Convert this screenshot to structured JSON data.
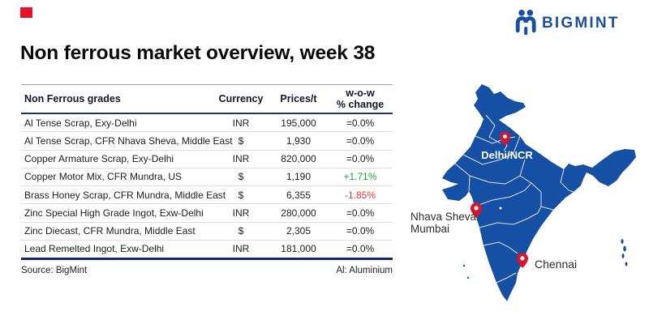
{
  "brand": {
    "logo_text": "BIGMINT",
    "logo_color": "#1a4fa0",
    "accent_square_color": "#e8112d"
  },
  "title": "Non ferrous market overview, week 38",
  "table": {
    "headers": {
      "grades": "Non Ferrous grades",
      "currency": "Currency",
      "prices": "Prices/t",
      "wow_line1": "w-o-w",
      "wow_line2": "% change"
    },
    "rows": [
      {
        "grade": "Al Tense Scrap, Exy-Delhi",
        "currency": "INR",
        "price": "195,000",
        "change": "=0.0%",
        "trend": "flat"
      },
      {
        "grade": "Al Tense Scrap, CFR Nhava Sheva, Middle East",
        "currency": "$",
        "price": "1,930",
        "change": "=0.0%",
        "trend": "flat"
      },
      {
        "grade": "Copper Armature Scrap, Exy-Delhi",
        "currency": "INR",
        "price": "820,000",
        "change": "=0.0%",
        "trend": "flat"
      },
      {
        "grade": "Copper Motor Mix, CFR Mundra, US",
        "currency": "$",
        "price": "1,190",
        "change": "+1.71%",
        "trend": "up"
      },
      {
        "grade": "Brass Honey Scrap, CFR Mundra, Middle East",
        "currency": "$",
        "price": "6,355",
        "change": "-1.85%",
        "trend": "down"
      },
      {
        "grade": "Zinc Special High Grade Ingot, Exw-Delhi",
        "currency": "INR",
        "price": "280,000",
        "change": "=0.0%",
        "trend": "flat"
      },
      {
        "grade": "Zinc Diecast, CFR Mundra, Middle East",
        "currency": "$",
        "price": "2,305",
        "change": "=0.0%",
        "trend": "flat"
      },
      {
        "grade": "Lead Remelted Ingot, Exw-Delhi",
        "currency": "INR",
        "price": "181,000",
        "change": "=0.0%",
        "trend": "flat"
      }
    ],
    "source": "Source: BigMint",
    "footnote": "Al: Aluminium"
  },
  "map": {
    "region_name": "India",
    "fill_color": "#1550a5",
    "border_color": "#ffffff",
    "pin_color": "#d9132e",
    "pins": {
      "delhi": {
        "label": "Delhi/NCR"
      },
      "nhava": {
        "line1": "Nhava Sheva,",
        "line2": "Mumbai"
      },
      "chennai": {
        "label": "Chennai"
      }
    }
  },
  "colors": {
    "change_flat": "#1d1d1d",
    "change_up": "#1fa143",
    "change_down": "#e5342c",
    "header_rule": "#1c2f6e",
    "bottom_rule": "#0e2a6b"
  }
}
